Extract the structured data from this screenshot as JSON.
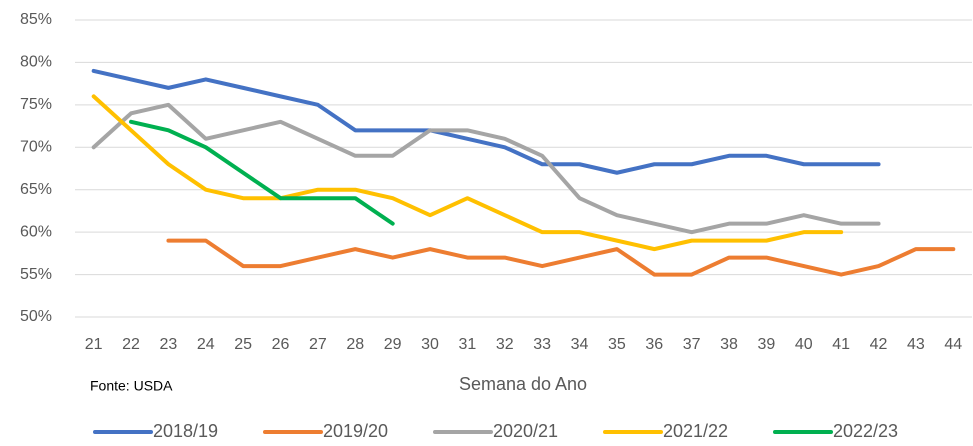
{
  "chart_data": {
    "type": "line",
    "x_label": "Semana do Ano",
    "annotation": "Fonte: USDA",
    "categories": [
      "21",
      "22",
      "23",
      "24",
      "25",
      "26",
      "27",
      "28",
      "29",
      "30",
      "31",
      "32",
      "33",
      "34",
      "35",
      "36",
      "37",
      "38",
      "39",
      "40",
      "41",
      "42",
      "43",
      "44"
    ],
    "ylim": [
      50,
      85
    ],
    "yticks": [
      {
        "value": 50,
        "label": "50%"
      },
      {
        "value": 55,
        "label": "55%"
      },
      {
        "value": 60,
        "label": "60%"
      },
      {
        "value": 65,
        "label": "65%"
      },
      {
        "value": 70,
        "label": "70%"
      },
      {
        "value": 75,
        "label": "75%"
      },
      {
        "value": 80,
        "label": "80%"
      },
      {
        "value": 85,
        "label": "85%"
      }
    ],
    "grid": true,
    "legend": "bottom",
    "series": [
      {
        "name": "2018/19",
        "color": "#4472c4",
        "values": [
          79,
          78,
          77,
          78,
          77,
          76,
          75,
          72,
          72,
          72,
          71,
          70,
          68,
          68,
          67,
          68,
          68,
          69,
          69,
          68,
          68,
          68,
          null,
          null
        ]
      },
      {
        "name": "2019/20",
        "color": "#ed7d31",
        "values": [
          null,
          null,
          59,
          59,
          56,
          56,
          57,
          58,
          57,
          58,
          57,
          57,
          56,
          57,
          58,
          55,
          55,
          57,
          57,
          56,
          55,
          56,
          58,
          58
        ]
      },
      {
        "name": "2020/21",
        "color": "#a5a5a5",
        "values": [
          70,
          74,
          75,
          71,
          72,
          73,
          71,
          69,
          69,
          72,
          72,
          71,
          69,
          64,
          62,
          61,
          60,
          61,
          61,
          62,
          61,
          61,
          null,
          null
        ]
      },
      {
        "name": "2021/22",
        "color": "#ffc000",
        "values": [
          76,
          72,
          68,
          65,
          64,
          64,
          65,
          65,
          64,
          62,
          64,
          62,
          60,
          60,
          59,
          58,
          59,
          59,
          59,
          60,
          60,
          null,
          null,
          null
        ]
      },
      {
        "name": "2022/23",
        "color": "#00b050",
        "values": [
          null,
          73,
          72,
          70,
          67,
          64,
          64,
          64,
          61,
          null,
          null,
          null,
          null,
          null,
          null,
          null,
          null,
          null,
          null,
          null,
          null,
          null,
          null,
          null
        ]
      }
    ]
  }
}
